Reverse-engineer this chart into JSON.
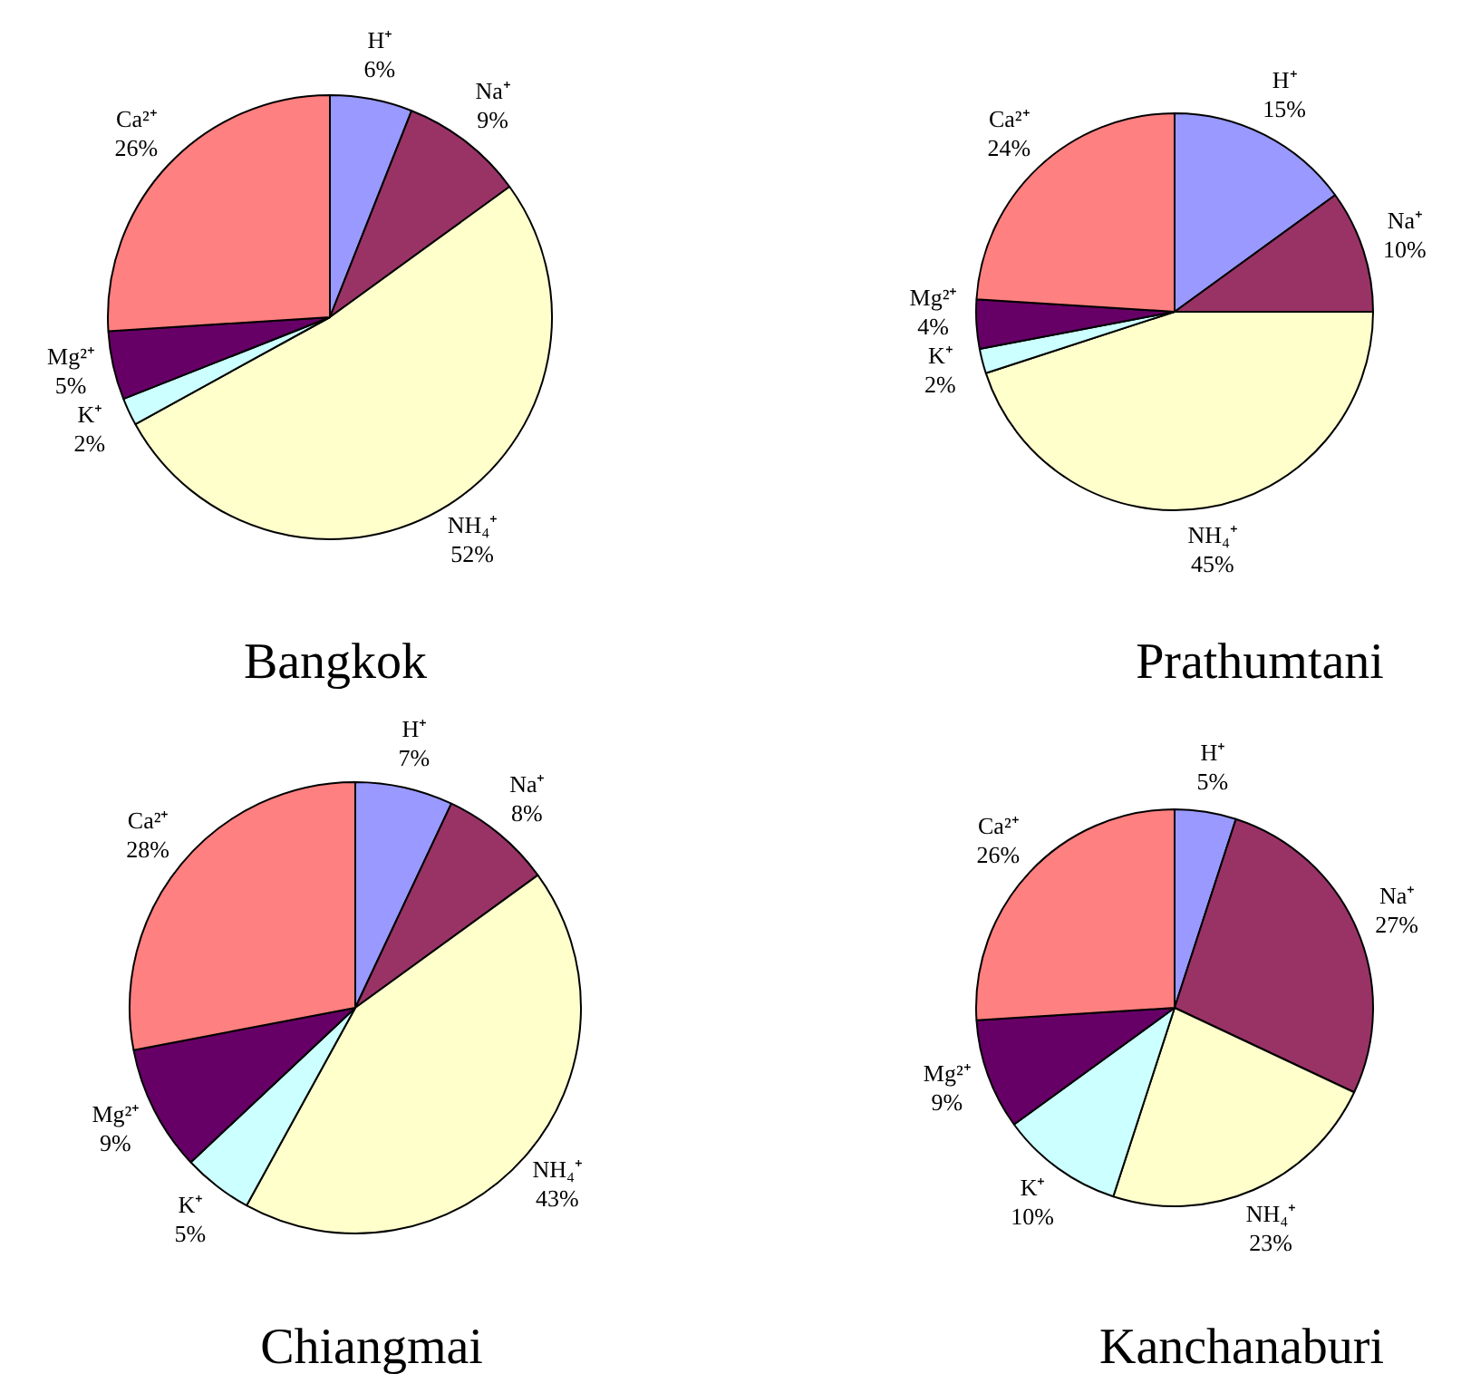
{
  "chart_data": [
    {
      "type": "pie",
      "title": "Bangkok",
      "categories": [
        "H⁺",
        "Na⁺",
        "NH₄⁺",
        "K⁺",
        "Mg²⁺",
        "Ca²⁺"
      ],
      "values": [
        6,
        9,
        52,
        2,
        5,
        26
      ],
      "value_labels": [
        "6%",
        "9%",
        "52%",
        "2%",
        "5%",
        "26%"
      ],
      "colors": [
        "#9999ff",
        "#993366",
        "#ffffcc",
        "#ccffff",
        "#660066",
        "#ff8080"
      ]
    },
    {
      "type": "pie",
      "title": "Prathumtani",
      "categories": [
        "H⁺",
        "Na⁺",
        "NH₄⁺",
        "K⁺",
        "Mg²⁺",
        "Ca²⁺"
      ],
      "values": [
        15,
        10,
        45,
        2,
        4,
        24
      ],
      "value_labels": [
        "15%",
        "10%",
        "45%",
        "2%",
        "4%",
        "24%"
      ],
      "colors": [
        "#9999ff",
        "#993366",
        "#ffffcc",
        "#ccffff",
        "#660066",
        "#ff8080"
      ]
    },
    {
      "type": "pie",
      "title": "Chiangmai",
      "categories": [
        "H⁺",
        "Na⁺",
        "NH₄⁺",
        "K⁺",
        "Mg²⁺",
        "Ca²⁺"
      ],
      "values": [
        7,
        8,
        43,
        5,
        9,
        28
      ],
      "value_labels": [
        "7%",
        "8%",
        "43%",
        "5%",
        "9%",
        "28%"
      ],
      "colors": [
        "#9999ff",
        "#993366",
        "#ffffcc",
        "#ccffff",
        "#660066",
        "#ff8080"
      ]
    },
    {
      "type": "pie",
      "title": "Kanchanaburi",
      "categories": [
        "H⁺",
        "Na⁺",
        "NH₄⁺",
        "K⁺",
        "Mg²⁺",
        "Ca²⁺"
      ],
      "values": [
        5,
        27,
        23,
        10,
        9,
        26
      ],
      "value_labels": [
        "5%",
        "27%",
        "23%",
        "10%",
        "9%",
        "26%"
      ],
      "colors": [
        "#9999ff",
        "#993366",
        "#ffffcc",
        "#ccffff",
        "#660066",
        "#ff8080"
      ]
    }
  ]
}
